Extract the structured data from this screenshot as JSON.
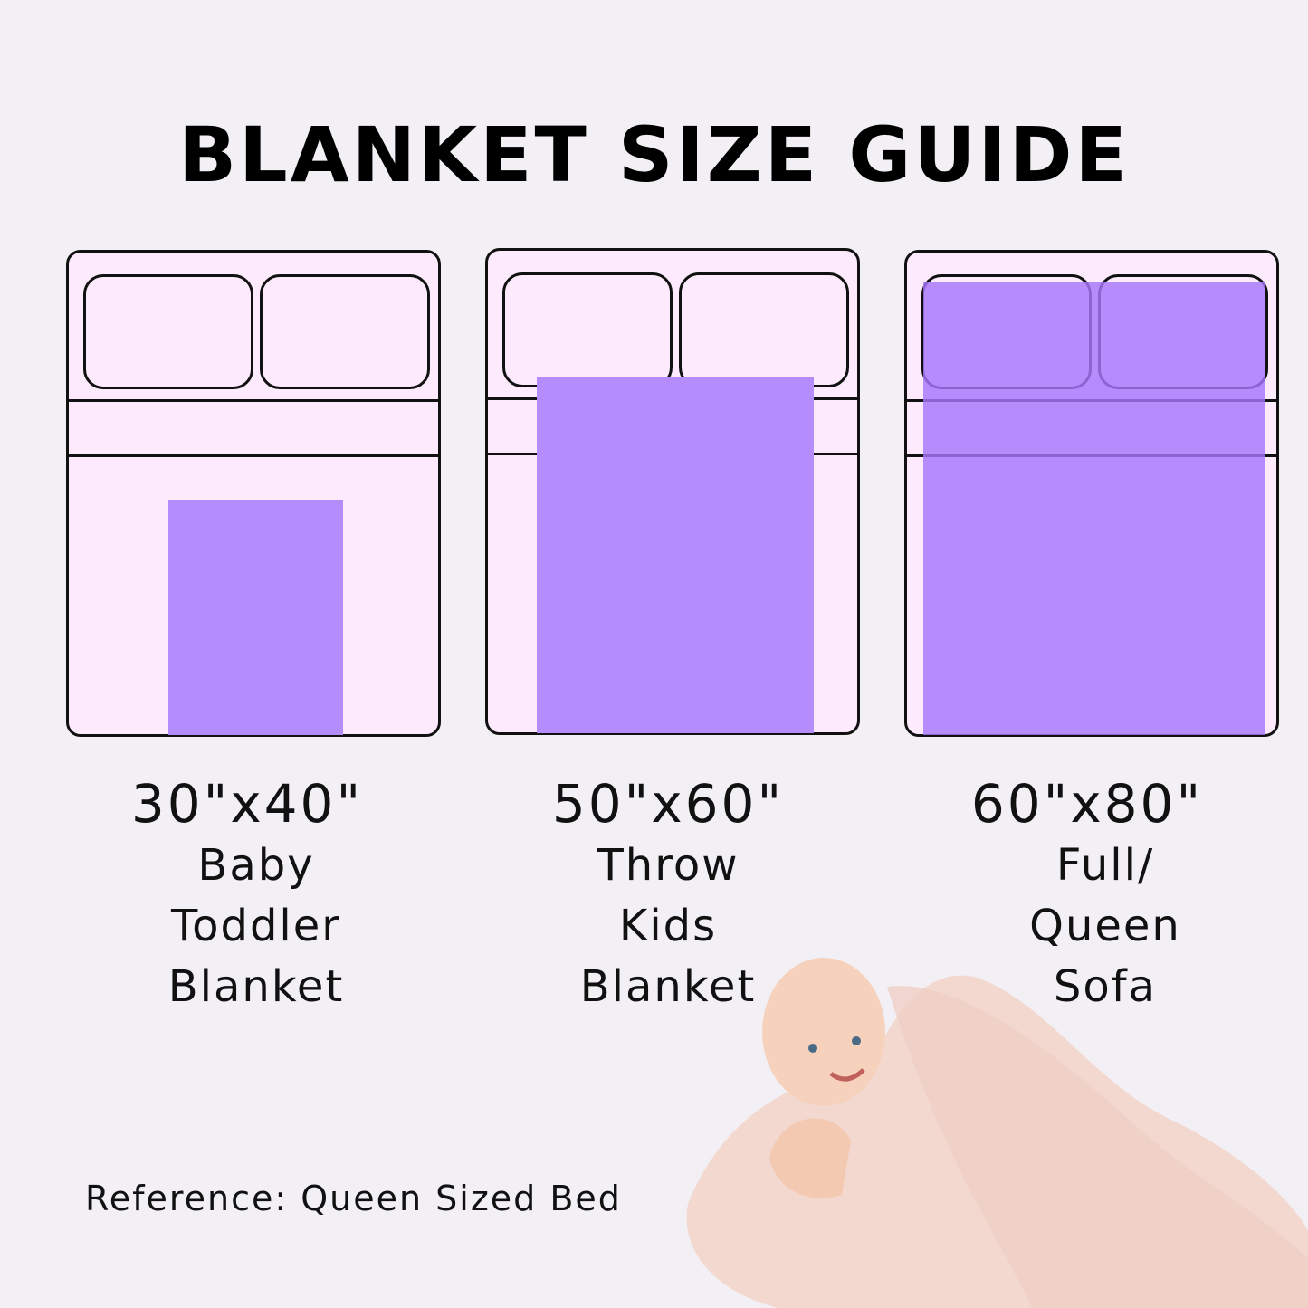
{
  "title": "BLANKET SIZE GUIDE",
  "colors": {
    "background": "#f2f0f4",
    "bed": "#fdebfd",
    "blanket": "#b48cfc",
    "outline": "#111111"
  },
  "beds": [
    {
      "size": "30\"x40\"",
      "lines": [
        "Baby",
        "Toddler",
        "Blanket"
      ]
    },
    {
      "size": "50\"x60\"",
      "lines": [
        "Throw",
        "Kids",
        "Blanket"
      ]
    },
    {
      "size": "60\"x80\"",
      "lines": [
        "Full/",
        "Queen",
        "Sofa"
      ]
    }
  ],
  "reference": "Reference: Queen Sized Bed",
  "photo": "baby-in-knit-blanket"
}
